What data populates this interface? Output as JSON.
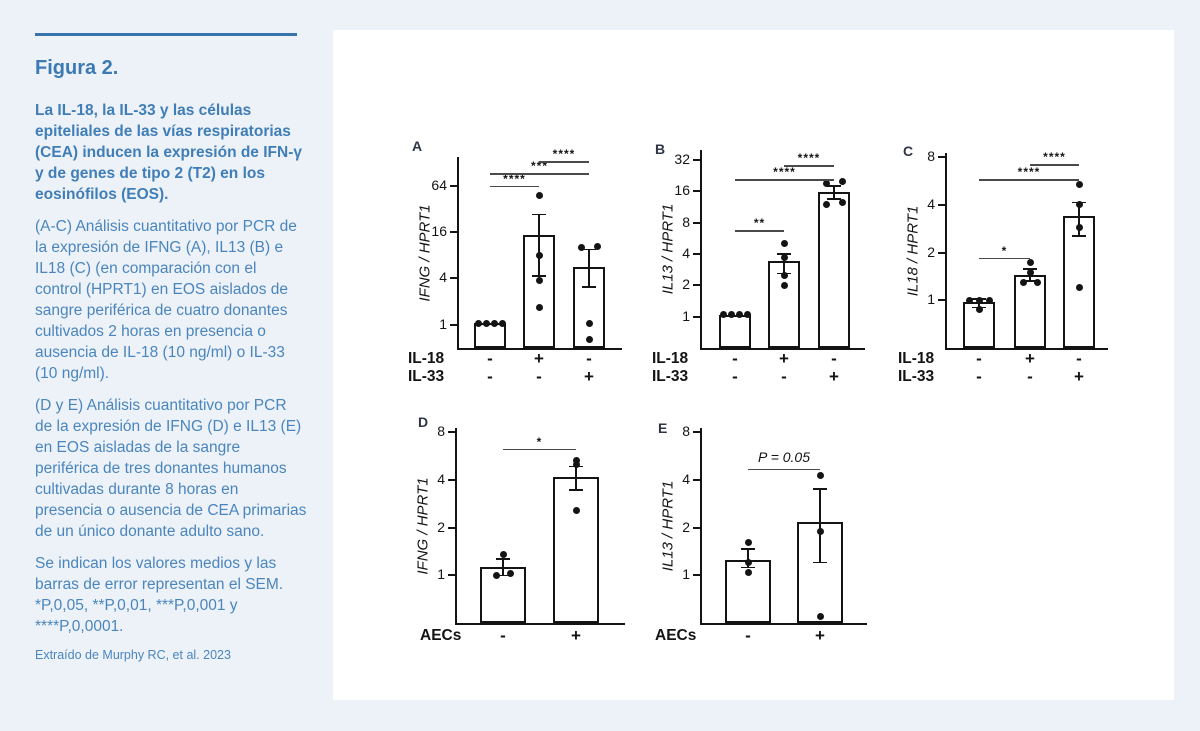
{
  "page": {
    "background": "#edf1f8",
    "card_background": "#ffffff",
    "accent_blue": "#3c7ab3"
  },
  "sidebar": {
    "title": "Figura 2.",
    "lead": "La IL-18, la IL-33 y las células epiteliales de las vías respiratorias (CEA) inducen la expresión de IFN-γ y de genes de tipo 2 (T2) en los eosinófilos (EOS).",
    "paragraphs": [
      "(A-C) Análisis cuantitativo por PCR de la expresión de IFNG (A), IL13 (B) e IL18 (C) (en comparación con el control (HPRT1) en EOS aislados de sangre periférica de cuatro donantes cultivados 2 horas en presencia o ausencia de IL-18 (10 ng/ml) o IL-33 (10 ng/ml).",
      "(D y E) Análisis cuantitativo por PCR de la expresión de IFNG (D) e IL13 (E) en EOS aisladas de la sangre periférica de tres donantes humanos cultivadas durante 8 horas en presencia o ausencia de CEA primarias de un único donante adulto sano.",
      "Se indican los valores medios y las barras de error representan el SEM. *P,0,05, **P,0,01, ***P,0,001 y ****P,0,0001."
    ],
    "source": "Extraído de Murphy RC, et al. 2023"
  },
  "chart_data": [
    {
      "id": "A",
      "type": "bar",
      "yscale": "log2",
      "ylabel": "IFNG / HPRT1",
      "yticks": [
        1,
        4,
        16,
        64
      ],
      "ymin": 0.5,
      "ymax": 150,
      "bars": [
        {
          "mean": 1.05,
          "err": null,
          "points": [
            {
              "dx": -12,
              "v": 1.05
            },
            {
              "dx": -4,
              "v": 1.05
            },
            {
              "dx": 4,
              "v": 1.05
            },
            {
              "dx": 12,
              "v": 1.05
            }
          ]
        },
        {
          "mean": 14.5,
          "err": [
            4.3,
            27
          ],
          "points": [
            {
              "dx": 0,
              "v": 48
            },
            {
              "dx": 0,
              "v": 8
            },
            {
              "dx": 0,
              "v": 3.8
            },
            {
              "dx": 0,
              "v": 1.7
            }
          ]
        },
        {
          "mean": 5.6,
          "err": [
            3.1,
            9.5
          ],
          "points": [
            {
              "dx": -8,
              "v": 10
            },
            {
              "dx": 8,
              "v": 10.5
            },
            {
              "dx": 0,
              "v": 1.05
            },
            {
              "dx": 0,
              "v": 0.65
            }
          ]
        }
      ],
      "sig": [
        {
          "from": 0,
          "to": 1,
          "label": "****",
          "v": 64
        },
        {
          "from": 0,
          "to": 2,
          "label": "***",
          "v": 92
        },
        {
          "from": 1,
          "to": 2,
          "label": "****",
          "v": 132
        }
      ],
      "x_rows": [
        {
          "label": "IL-18",
          "values": [
            "-",
            "+",
            "-"
          ]
        },
        {
          "label": "IL-33",
          "values": [
            "-",
            "-",
            "+"
          ]
        }
      ]
    },
    {
      "id": "B",
      "type": "bar",
      "yscale": "log2",
      "ylabel": "IL13 / HPRT1",
      "yticks": [
        1,
        2,
        4,
        8,
        16,
        32
      ],
      "ymin": 0.5,
      "ymax": 40,
      "bars": [
        {
          "mean": 1.03,
          "err": null,
          "points": [
            {
              "dx": -12,
              "v": 1.05
            },
            {
              "dx": -4,
              "v": 1.05
            },
            {
              "dx": 4,
              "v": 1.05
            },
            {
              "dx": 12,
              "v": 1.05
            }
          ]
        },
        {
          "mean": 3.4,
          "err": [
            2.6,
            4.0
          ],
          "points": [
            {
              "dx": 0,
              "v": 5.0
            },
            {
              "dx": 0,
              "v": 3.7
            },
            {
              "dx": 0,
              "v": 2.5
            },
            {
              "dx": 0,
              "v": 2.0
            }
          ]
        },
        {
          "mean": 15.8,
          "err": [
            13.5,
            18
          ],
          "points": [
            {
              "dx": -8,
              "v": 19
            },
            {
              "dx": 8,
              "v": 20
            },
            {
              "dx": -8,
              "v": 12
            },
            {
              "dx": 8,
              "v": 12.5
            }
          ]
        }
      ],
      "sig": [
        {
          "from": 0,
          "to": 1,
          "label": "**",
          "v": 6.8
        },
        {
          "from": 0,
          "to": 2,
          "label": "****",
          "v": 21
        },
        {
          "from": 1,
          "to": 2,
          "label": "****",
          "v": 28.5
        }
      ],
      "x_rows": [
        {
          "label": "IL-18",
          "values": [
            "-",
            "+",
            "-"
          ]
        },
        {
          "label": "IL-33",
          "values": [
            "-",
            "-",
            "+"
          ]
        }
      ]
    },
    {
      "id": "C",
      "type": "bar",
      "yscale": "log2",
      "ylabel": "IL18 / HPRT1",
      "yticks": [
        1,
        2,
        4,
        8
      ],
      "ymin": 0.5,
      "ymax": 8.5,
      "bars": [
        {
          "mean": 0.97,
          "err": [
            0.9,
            1.02
          ],
          "points": [
            {
              "dx": -10,
              "v": 1.0
            },
            {
              "dx": 0,
              "v": 1.0
            },
            {
              "dx": 10,
              "v": 1.0
            },
            {
              "dx": 0,
              "v": 0.88
            }
          ]
        },
        {
          "mean": 1.45,
          "err": [
            1.32,
            1.58
          ],
          "points": [
            {
              "dx": 0,
              "v": 1.72
            },
            {
              "dx": 0,
              "v": 1.5
            },
            {
              "dx": -7,
              "v": 1.3
            },
            {
              "dx": 7,
              "v": 1.3
            }
          ]
        },
        {
          "mean": 3.4,
          "err": [
            2.55,
            4.15
          ],
          "points": [
            {
              "dx": 0,
              "v": 5.4
            },
            {
              "dx": 0,
              "v": 4.05
            },
            {
              "dx": 0,
              "v": 2.9
            },
            {
              "dx": 0,
              "v": 1.2
            }
          ]
        }
      ],
      "sig": [
        {
          "from": 0,
          "to": 1,
          "label": "*",
          "v": 1.85
        },
        {
          "from": 0,
          "to": 2,
          "label": "****",
          "v": 5.8
        },
        {
          "from": 1,
          "to": 2,
          "label": "****",
          "v": 7.2
        }
      ],
      "x_rows": [
        {
          "label": "IL-18",
          "values": [
            "-",
            "+",
            "-"
          ]
        },
        {
          "label": "IL-33",
          "values": [
            "-",
            "-",
            "+"
          ]
        }
      ]
    },
    {
      "id": "D",
      "type": "bar",
      "yscale": "log2",
      "ylabel": "IFNG / HPRT1",
      "yticks": [
        1,
        2,
        4,
        8
      ],
      "ymin": 0.5,
      "ymax": 8.5,
      "bars": [
        {
          "mean": 1.12,
          "err": [
            1.0,
            1.27
          ],
          "points": [
            {
              "dx": 0,
              "v": 1.35
            },
            {
              "dx": -7,
              "v": 1.0
            },
            {
              "dx": 7,
              "v": 1.03
            }
          ]
        },
        {
          "mean": 4.15,
          "err": [
            3.45,
            4.85
          ],
          "points": [
            {
              "dx": 0,
              "v": 5.3
            },
            {
              "dx": 0,
              "v": 5.0
            },
            {
              "dx": 0,
              "v": 2.55
            }
          ]
        }
      ],
      "sig": [
        {
          "from": 0,
          "to": 1,
          "label": "*",
          "v": 6.3
        }
      ],
      "x_rows": [
        {
          "label": "AECs",
          "values": [
            "-",
            "+"
          ]
        }
      ]
    },
    {
      "id": "E",
      "type": "bar",
      "yscale": "log2",
      "ylabel": "IL13 / HPRT1",
      "yticks": [
        1,
        2,
        4,
        8
      ],
      "ymin": 0.5,
      "ymax": 8.5,
      "bars": [
        {
          "mean": 1.25,
          "err": [
            1.12,
            1.47
          ],
          "points": [
            {
              "dx": 0,
              "v": 1.6
            },
            {
              "dx": 0,
              "v": 1.2
            },
            {
              "dx": 0,
              "v": 1.04
            }
          ]
        },
        {
          "mean": 2.18,
          "err": [
            1.2,
            3.5
          ],
          "points": [
            {
              "dx": 0,
              "v": 4.25
            },
            {
              "dx": 0,
              "v": 1.9
            },
            {
              "dx": 0,
              "v": 0.55
            }
          ]
        }
      ],
      "sig": [
        {
          "from": 0,
          "to": 1,
          "label": "P = 0.05",
          "v": 4.7
        }
      ],
      "x_rows": [
        {
          "label": "AECs",
          "values": [
            "-",
            "+"
          ]
        }
      ]
    }
  ]
}
